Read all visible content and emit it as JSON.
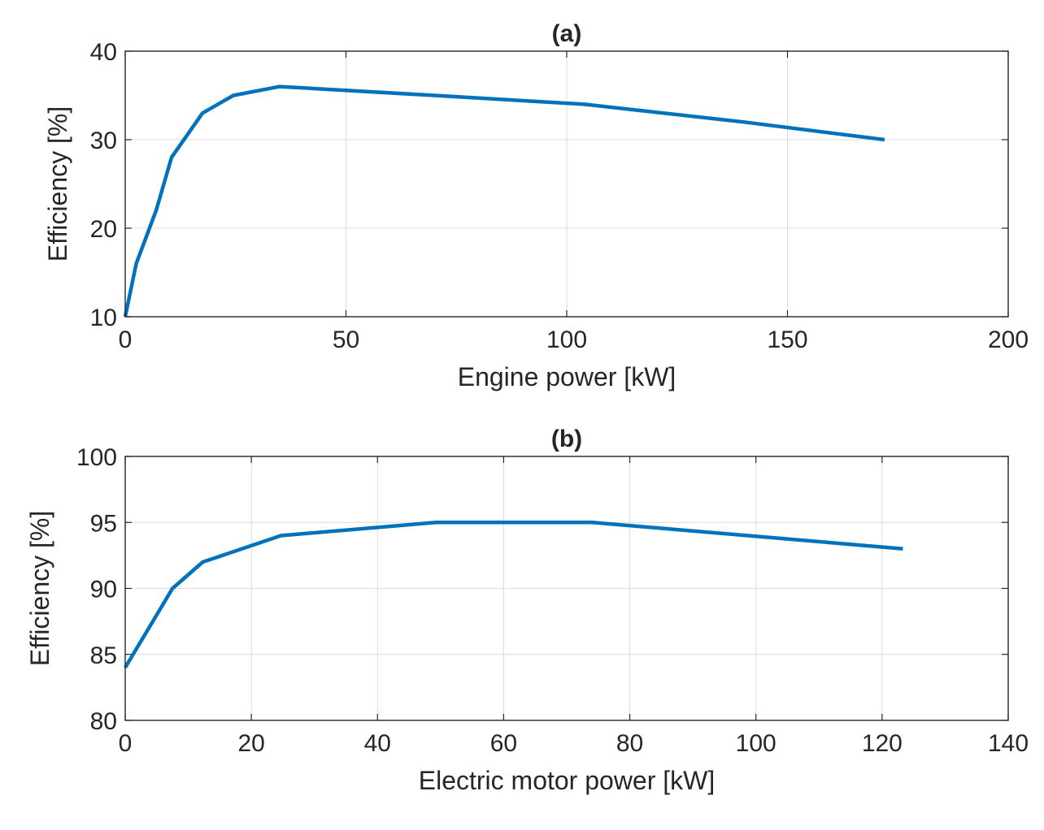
{
  "chart_data": [
    {
      "type": "line",
      "title": "(a)",
      "xlabel": "Engine power [kW]",
      "ylabel": "Efficiency [%]",
      "xlim": [
        0,
        200
      ],
      "ylim": [
        10,
        40
      ],
      "xticks": [
        0,
        50,
        100,
        150,
        200
      ],
      "yticks": [
        10,
        20,
        30,
        40
      ],
      "grid": true,
      "color": "#0072BD",
      "x": [
        0,
        2.5,
        7,
        10.5,
        17.5,
        24.5,
        35,
        70,
        104,
        140,
        172
      ],
      "y": [
        10,
        16,
        22,
        28,
        33,
        35,
        36,
        35,
        34,
        32,
        30
      ]
    },
    {
      "type": "line",
      "title": "(b)",
      "xlabel": "Electric motor power [kW]",
      "ylabel": "Efficiency [%]",
      "xlim": [
        0,
        140
      ],
      "ylim": [
        80,
        100
      ],
      "xticks": [
        0,
        20,
        40,
        60,
        80,
        100,
        120,
        140
      ],
      "yticks": [
        80,
        85,
        90,
        95,
        100
      ],
      "grid": true,
      "color": "#0072BD",
      "x": [
        0,
        7.5,
        12.3,
        24.7,
        49.3,
        74,
        98.7,
        123.3
      ],
      "y": [
        84,
        90,
        92,
        94,
        95,
        95,
        94,
        93
      ]
    }
  ]
}
